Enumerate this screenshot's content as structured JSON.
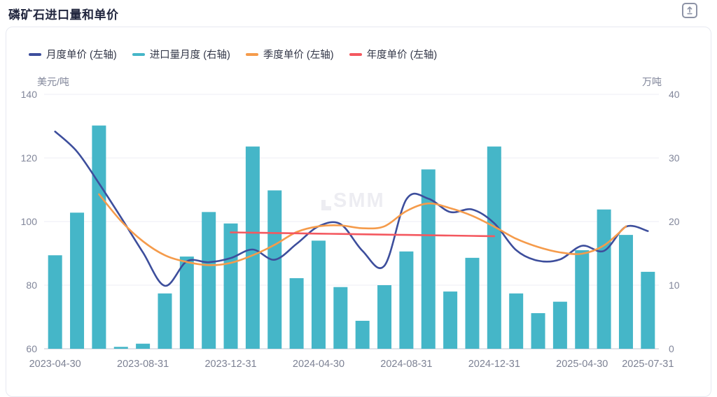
{
  "page": {
    "title": "磷矿石进口量和单价"
  },
  "toolbar": {
    "export_icon": "export-icon"
  },
  "watermark": {
    "text": "SMM"
  },
  "chart": {
    "legend": [
      {
        "label": "月度单价 (左轴)",
        "color": "#3d4e9c",
        "type": "line"
      },
      {
        "label": "进口量月度 (右轴)",
        "color": "#45b6c8",
        "type": "bar"
      },
      {
        "label": "季度单价 (左轴)",
        "color": "#f59b4b",
        "type": "line"
      },
      {
        "label": "年度单价 (左轴)",
        "color": "#f4585f",
        "type": "line"
      }
    ],
    "colors": {
      "grid": "#eceef5",
      "axis_line": "#c2c6d1",
      "axis_text": "#81869a",
      "title_text": "#21263e",
      "legend_text": "#333748"
    }
  },
  "chart_data": {
    "type": "bar",
    "title": "磷矿石进口量和单价",
    "categories": [
      "2023-04-30",
      "2023-05-31",
      "2023-06-30",
      "2023-07-31",
      "2023-08-31",
      "2023-09-30",
      "2023-10-31",
      "2023-11-30",
      "2023-12-31",
      "2024-01-31",
      "2024-02-29",
      "2024-03-31",
      "2024-04-30",
      "2024-05-31",
      "2024-06-30",
      "2024-07-31",
      "2024-08-31",
      "2024-09-30",
      "2024-10-31",
      "2024-11-30",
      "2024-12-31",
      "2025-01-31",
      "2025-02-28",
      "2025-03-31",
      "2025-04-30",
      "2025-05-31",
      "2025-06-30",
      "2025-07-31"
    ],
    "x_tick_labels": [
      {
        "index": 0,
        "label": "2023-04-30"
      },
      {
        "index": 4,
        "label": "2023-08-31"
      },
      {
        "index": 8,
        "label": "2023-12-31"
      },
      {
        "index": 12,
        "label": "2024-04-30"
      },
      {
        "index": 16,
        "label": "2024-08-31"
      },
      {
        "index": 20,
        "label": "2024-12-31"
      },
      {
        "index": 24,
        "label": "2025-04-30"
      },
      {
        "index": 27,
        "label": "2025-07-31"
      }
    ],
    "left_axis": {
      "name": "美元/吨",
      "min": 60,
      "max": 140,
      "ticks": [
        140,
        120,
        100,
        80,
        60
      ]
    },
    "right_axis": {
      "name": "万吨",
      "min": 0,
      "max": 40,
      "ticks": [
        40,
        30,
        20,
        10,
        0
      ]
    },
    "grid": true,
    "legend_position": "top-left",
    "series": [
      {
        "name": "进口量月度 (右轴)",
        "type": "bar",
        "axis": "right",
        "color": "#45b6c8",
        "values": [
          14.7,
          21.4,
          35.1,
          0.3,
          0.8,
          8.7,
          14.5,
          21.5,
          19.7,
          31.8,
          24.9,
          11.1,
          17.0,
          9.7,
          4.4,
          10.0,
          15.3,
          28.2,
          9.0,
          14.3,
          31.8,
          8.7,
          5.6,
          7.4,
          15.5,
          21.9,
          17.9,
          12.1
        ]
      },
      {
        "name": "月度单价 (左轴)",
        "type": "line",
        "axis": "left",
        "color": "#3d4e9c",
        "values": [
          128.3,
          122.0,
          112.0,
          101.3,
          90.3,
          79.8,
          87.5,
          87.2,
          88.5,
          91.2,
          88.0,
          93.0,
          98.5,
          99.2,
          90.8,
          86.1,
          107.0,
          107.2,
          103.0,
          103.8,
          99.5,
          91.0,
          87.7,
          88.1,
          92.4,
          90.8,
          98.4,
          97.0
        ]
      },
      {
        "name": "季度单价 (左轴)",
        "type": "line",
        "axis": "left",
        "color": "#f59b4b",
        "values": [
          null,
          null,
          108.6,
          100.2,
          93.8,
          89.4,
          87.3,
          86.3,
          87.0,
          89.4,
          92.7,
          96.7,
          98.5,
          98.8,
          97.9,
          98.5,
          103.3,
          105.7,
          104.2,
          101.8,
          98.4,
          94.6,
          92.0,
          90.3,
          89.9,
          92.5,
          98.5,
          null
        ]
      },
      {
        "name": "年度单价 (左轴)",
        "type": "line",
        "axis": "left",
        "color": "#f4585f",
        "values": [
          null,
          null,
          null,
          null,
          null,
          null,
          null,
          null,
          96.6,
          96.5,
          96.4,
          96.3,
          96.2,
          96.1,
          96.0,
          95.9,
          95.8,
          95.7,
          95.6,
          95.5,
          95.4,
          null,
          null,
          null,
          null,
          null,
          null,
          null
        ]
      }
    ]
  }
}
